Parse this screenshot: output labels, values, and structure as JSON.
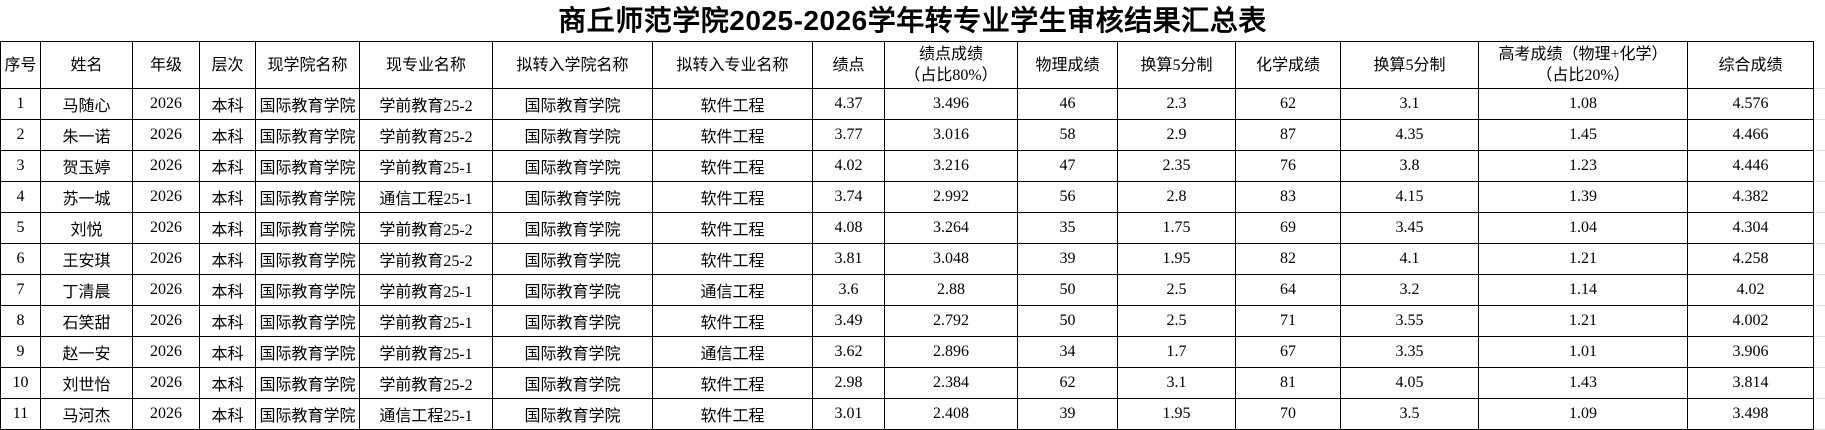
{
  "title": "商丘师范学院2025-2026学年转专业学生审核结果汇总表",
  "table": {
    "columns": [
      {
        "key": "index",
        "label": "序号"
      },
      {
        "key": "name",
        "label": "姓名"
      },
      {
        "key": "grade",
        "label": "年级"
      },
      {
        "key": "level",
        "label": "层次"
      },
      {
        "key": "current-college",
        "label": "现学院名称"
      },
      {
        "key": "current-major",
        "label": "现专业名称"
      },
      {
        "key": "target-college",
        "label": "拟转入学院名称"
      },
      {
        "key": "target-major",
        "label": "拟转入专业名称"
      },
      {
        "key": "gpa",
        "label": "绩点"
      },
      {
        "key": "gpa-score",
        "label": "绩点成绩\n（占比80%）"
      },
      {
        "key": "physics-score",
        "label": "物理成绩"
      },
      {
        "key": "physics-5pt",
        "label": "换算5分制"
      },
      {
        "key": "chemistry-score",
        "label": "化学成绩"
      },
      {
        "key": "chemistry-5pt",
        "label": "换算5分制"
      },
      {
        "key": "gaokao-score",
        "label": "高考成绩（物理+化学）\n（占比20%）"
      },
      {
        "key": "composite-score",
        "label": "综合成绩"
      }
    ],
    "rows": [
      [
        "1",
        "马随心",
        "2026",
        "本科",
        "国际教育学院",
        "学前教育25-2",
        "国际教育学院",
        "软件工程",
        "4.37",
        "3.496",
        "46",
        "2.3",
        "62",
        "3.1",
        "1.08",
        "4.576"
      ],
      [
        "2",
        "朱一诺",
        "2026",
        "本科",
        "国际教育学院",
        "学前教育25-2",
        "国际教育学院",
        "软件工程",
        "3.77",
        "3.016",
        "58",
        "2.9",
        "87",
        "4.35",
        "1.45",
        "4.466"
      ],
      [
        "3",
        "贺玉婷",
        "2026",
        "本科",
        "国际教育学院",
        "学前教育25-1",
        "国际教育学院",
        "软件工程",
        "4.02",
        "3.216",
        "47",
        "2.35",
        "76",
        "3.8",
        "1.23",
        "4.446"
      ],
      [
        "4",
        "苏一城",
        "2026",
        "本科",
        "国际教育学院",
        "通信工程25-1",
        "国际教育学院",
        "软件工程",
        "3.74",
        "2.992",
        "56",
        "2.8",
        "83",
        "4.15",
        "1.39",
        "4.382"
      ],
      [
        "5",
        "刘悦",
        "2026",
        "本科",
        "国际教育学院",
        "学前教育25-2",
        "国际教育学院",
        "软件工程",
        "4.08",
        "3.264",
        "35",
        "1.75",
        "69",
        "3.45",
        "1.04",
        "4.304"
      ],
      [
        "6",
        "王安琪",
        "2026",
        "本科",
        "国际教育学院",
        "学前教育25-2",
        "国际教育学院",
        "软件工程",
        "3.81",
        "3.048",
        "39",
        "1.95",
        "82",
        "4.1",
        "1.21",
        "4.258"
      ],
      [
        "7",
        "丁清晨",
        "2026",
        "本科",
        "国际教育学院",
        "学前教育25-1",
        "国际教育学院",
        "通信工程",
        "3.6",
        "2.88",
        "50",
        "2.5",
        "64",
        "3.2",
        "1.14",
        "4.02"
      ],
      [
        "8",
        "石笑甜",
        "2026",
        "本科",
        "国际教育学院",
        "学前教育25-1",
        "国际教育学院",
        "软件工程",
        "3.49",
        "2.792",
        "50",
        "2.5",
        "71",
        "3.55",
        "1.21",
        "4.002"
      ],
      [
        "9",
        "赵一安",
        "2026",
        "本科",
        "国际教育学院",
        "学前教育25-1",
        "国际教育学院",
        "通信工程",
        "3.62",
        "2.896",
        "34",
        "1.7",
        "67",
        "3.35",
        "1.01",
        "3.906"
      ],
      [
        "10",
        "刘世怡",
        "2026",
        "本科",
        "国际教育学院",
        "学前教育25-2",
        "国际教育学院",
        "软件工程",
        "2.98",
        "2.384",
        "62",
        "3.1",
        "81",
        "4.05",
        "1.43",
        "3.814"
      ],
      [
        "11",
        "马河杰",
        "2026",
        "本科",
        "国际教育学院",
        "通信工程25-1",
        "国际教育学院",
        "软件工程",
        "3.01",
        "2.408",
        "39",
        "1.95",
        "70",
        "3.5",
        "1.09",
        "3.498"
      ]
    ]
  },
  "colors": {
    "border": "#000000",
    "grid_faint": "#d9d9d9",
    "background": "#ffffff",
    "text": "#000000"
  }
}
